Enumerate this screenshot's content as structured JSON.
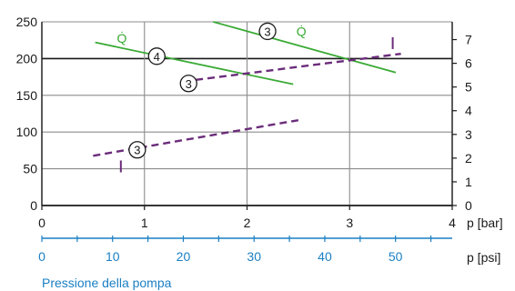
{
  "chart_data": {
    "type": "line",
    "x_unit_label": "p [bar]",
    "x2_unit_label": "p [psi]",
    "x_axis_title": "Pressione della pompa",
    "xlim": [
      0,
      4
    ],
    "ylim": [
      0,
      250
    ],
    "x_ticks": [
      "0",
      "1",
      "2",
      "3",
      "4"
    ],
    "y_left_ticks": [
      "0",
      "50",
      "100",
      "150",
      "200",
      "250"
    ],
    "psi_ticks": [
      "0",
      "10",
      "20",
      "30",
      "40",
      "50"
    ],
    "y_right_ticks": [
      "0",
      "1",
      "2",
      "3",
      "4",
      "5",
      "6",
      "7"
    ],
    "right_axis_max": 7.75,
    "grid": true,
    "series": [
      {
        "marker": "4",
        "label": "Q̇",
        "style": "solid",
        "color": "#3aaa35",
        "x": [
          0.52,
          2.45
        ],
        "y": [
          222,
          165
        ]
      },
      {
        "marker": "3",
        "label": "Q̇",
        "style": "solid",
        "color": "#3aaa35",
        "x": [
          1.67,
          3.45
        ],
        "y": [
          250,
          181
        ]
      },
      {
        "marker": "3",
        "style": "dashed",
        "color": "#6b2c7a",
        "x": [
          1.5,
          3.5
        ],
        "y": [
          5.3,
          6.4
        ],
        "axis": "right"
      },
      {
        "marker": "3",
        "style": "dashed",
        "color": "#6b2c7a",
        "x": [
          0.5,
          2.5
        ],
        "y": [
          2.1,
          3.6
        ],
        "axis": "right"
      }
    ],
    "markers": [
      "4",
      "3",
      "3",
      "3"
    ],
    "series_labels": [
      "Q̇",
      "Q̇"
    ]
  }
}
